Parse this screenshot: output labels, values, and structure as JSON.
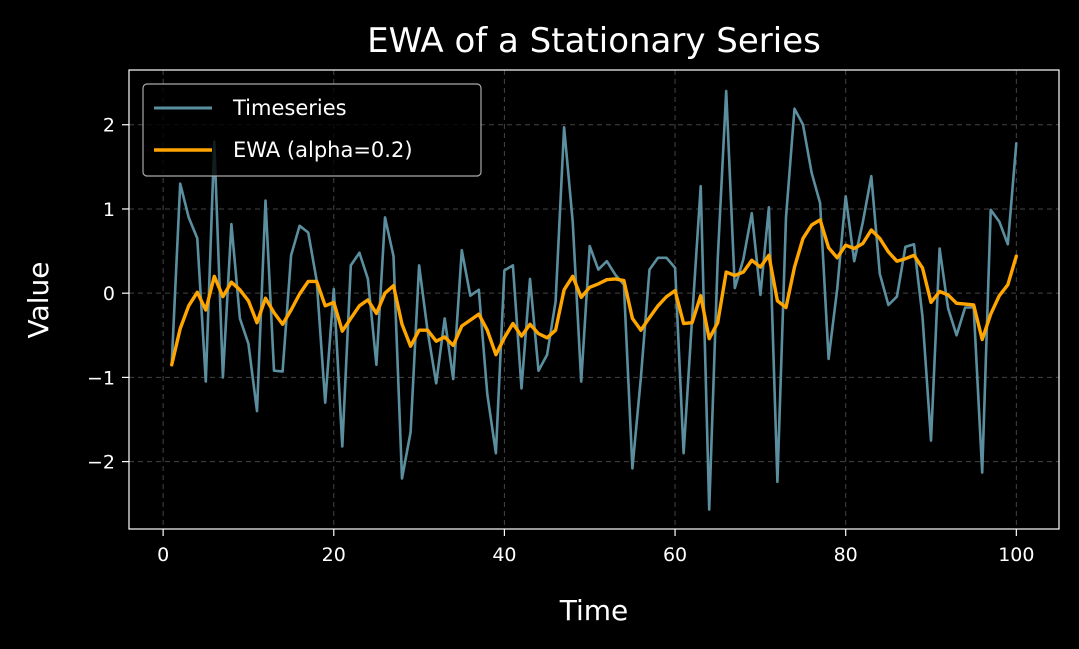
{
  "chart_data": {
    "type": "line",
    "title": "EWA of a Stationary Series",
    "xlabel": "Time",
    "ylabel": "Value",
    "xlim": [
      -4,
      105
    ],
    "ylim": [
      -2.8,
      2.65
    ],
    "xticks": [
      0,
      20,
      40,
      60,
      80,
      100
    ],
    "yticks": [
      -2,
      -1,
      0,
      1,
      2
    ],
    "xtick_labels": [
      "0",
      "20",
      "40",
      "60",
      "80",
      "100"
    ],
    "ytick_labels": [
      "−2",
      "−1",
      "0",
      "1",
      "2"
    ],
    "grid": true,
    "legend": "upper-left",
    "background": "#000000",
    "series": [
      {
        "name": "Timeseries",
        "color": "#5b8fa0",
        "x": [
          1,
          2,
          3,
          4,
          5,
          6,
          7,
          8,
          9,
          10,
          11,
          12,
          13,
          14,
          15,
          16,
          17,
          18,
          19,
          20,
          21,
          22,
          23,
          24,
          25,
          26,
          27,
          28,
          29,
          30,
          31,
          32,
          33,
          34,
          35,
          36,
          37,
          38,
          39,
          40,
          41,
          42,
          43,
          44,
          45,
          46,
          47,
          48,
          49,
          50,
          51,
          52,
          53,
          54,
          55,
          56,
          57,
          58,
          59,
          60,
          61,
          62,
          63,
          64,
          65,
          66,
          67,
          68,
          69,
          70,
          71,
          72,
          73,
          74,
          75,
          76,
          77,
          78,
          79,
          80,
          81,
          82,
          83,
          84,
          85,
          86,
          87,
          88,
          89,
          90,
          91,
          92,
          93,
          94,
          95,
          96,
          97,
          98,
          99,
          100
        ],
        "values": [
          -0.85,
          1.3,
          0.9,
          0.65,
          -1.05,
          1.8,
          -1.0,
          0.82,
          -0.3,
          -0.6,
          -1.4,
          1.1,
          -0.92,
          -0.93,
          0.45,
          0.8,
          0.72,
          0.15,
          -1.3,
          0.05,
          -1.82,
          0.33,
          0.48,
          0.17,
          -0.85,
          0.9,
          0.44,
          -2.2,
          -1.65,
          0.33,
          -0.45,
          -1.07,
          -0.3,
          -1.02,
          0.51,
          -0.03,
          0.04,
          -1.2,
          -1.9,
          0.27,
          0.33,
          -1.13,
          0.17,
          -0.92,
          -0.73,
          -0.1,
          1.97,
          0.85,
          -1.05,
          0.56,
          0.28,
          0.38,
          0.22,
          0.1,
          -2.08,
          -1.0,
          0.28,
          0.42,
          0.42,
          0.3,
          -1.9,
          -0.3,
          1.27,
          -2.57,
          0.4,
          2.4,
          0.06,
          0.4,
          0.95,
          -0.02,
          1.02,
          -2.24,
          0.9,
          2.19,
          2.0,
          1.43,
          1.07,
          -0.78,
          0.05,
          1.15,
          0.38,
          0.84,
          1.39,
          0.23,
          -0.14,
          -0.04,
          0.55,
          0.58,
          -0.28,
          -1.75,
          0.53,
          -0.18,
          -0.5,
          -0.17,
          -0.17,
          -2.13,
          0.99,
          0.85,
          0.58,
          1.78
        ]
      },
      {
        "name": "EWA (alpha=0.2)",
        "color": "#ffa500",
        "x": [
          1,
          2,
          3,
          4,
          5,
          6,
          7,
          8,
          9,
          10,
          11,
          12,
          13,
          14,
          15,
          16,
          17,
          18,
          19,
          20,
          21,
          22,
          23,
          24,
          25,
          26,
          27,
          28,
          29,
          30,
          31,
          32,
          33,
          34,
          35,
          36,
          37,
          38,
          39,
          40,
          41,
          42,
          43,
          44,
          45,
          46,
          47,
          48,
          49,
          50,
          51,
          52,
          53,
          54,
          55,
          56,
          57,
          58,
          59,
          60,
          61,
          62,
          63,
          64,
          65,
          66,
          67,
          68,
          69,
          70,
          71,
          72,
          73,
          74,
          75,
          76,
          77,
          78,
          79,
          80,
          81,
          82,
          83,
          84,
          85,
          86,
          87,
          88,
          89,
          90,
          91,
          92,
          93,
          94,
          95,
          96,
          97,
          98,
          99,
          100
        ],
        "values": [
          -0.85,
          -0.42,
          -0.15,
          0.01,
          -0.2,
          0.2,
          -0.04,
          0.13,
          0.04,
          -0.09,
          -0.35,
          -0.06,
          -0.23,
          -0.37,
          -0.2,
          -0.01,
          0.14,
          0.14,
          -0.15,
          -0.11,
          -0.45,
          -0.3,
          -0.15,
          -0.08,
          -0.24,
          0.0,
          0.09,
          -0.37,
          -0.63,
          -0.44,
          -0.44,
          -0.57,
          -0.52,
          -0.62,
          -0.39,
          -0.32,
          -0.25,
          -0.44,
          -0.73,
          -0.53,
          -0.36,
          -0.51,
          -0.37,
          -0.48,
          -0.53,
          -0.44,
          0.04,
          0.2,
          -0.05,
          0.07,
          0.11,
          0.16,
          0.17,
          0.15,
          -0.3,
          -0.44,
          -0.29,
          -0.15,
          -0.04,
          0.03,
          -0.36,
          -0.35,
          -0.03,
          -0.54,
          -0.35,
          0.25,
          0.21,
          0.25,
          0.39,
          0.31,
          0.45,
          -0.09,
          -0.17,
          0.31,
          0.65,
          0.81,
          0.87,
          0.54,
          0.42,
          0.57,
          0.53,
          0.59,
          0.75,
          0.65,
          0.49,
          0.38,
          0.41,
          0.45,
          0.3,
          -0.11,
          0.02,
          -0.02,
          -0.12,
          -0.13,
          -0.14,
          -0.55,
          -0.25,
          -0.03,
          0.1,
          0.44
        ]
      }
    ]
  }
}
